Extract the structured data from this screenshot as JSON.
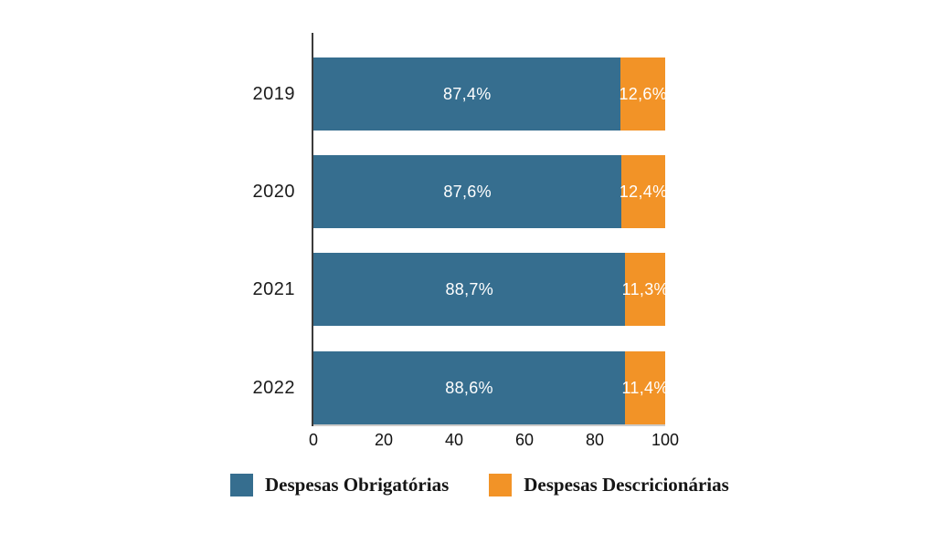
{
  "chart_data": {
    "type": "bar",
    "orientation": "horizontal",
    "stacked": true,
    "title": "",
    "xlabel": "",
    "ylabel": "",
    "categories": [
      "2019",
      "2020",
      "2021",
      "2022"
    ],
    "series": [
      {
        "name": "Despesas Obrigatórias",
        "color": "#366e8f",
        "values": [
          87.4,
          87.6,
          88.7,
          88.6
        ],
        "value_labels": [
          "87,4%",
          "87,6%",
          "88,7%",
          "88,6%"
        ]
      },
      {
        "name": "Despesas Descricionárias",
        "color": "#f29327",
        "values": [
          12.6,
          12.4,
          11.3,
          11.4
        ],
        "value_labels": [
          "12,6%",
          "12,4%",
          "11,3%",
          "11,4%"
        ]
      }
    ],
    "xlim": [
      0,
      100
    ],
    "x_tick_values": [
      0,
      20,
      40,
      60,
      80,
      100
    ],
    "x_tick_labels": [
      "0",
      "20",
      "40",
      "60",
      "80",
      "100"
    ],
    "grid": false,
    "legend_position": "bottom",
    "value_label_color": "#ffffff",
    "axis_line_color": "#3b3b3b",
    "baseline_color": "#cdcbc9"
  }
}
